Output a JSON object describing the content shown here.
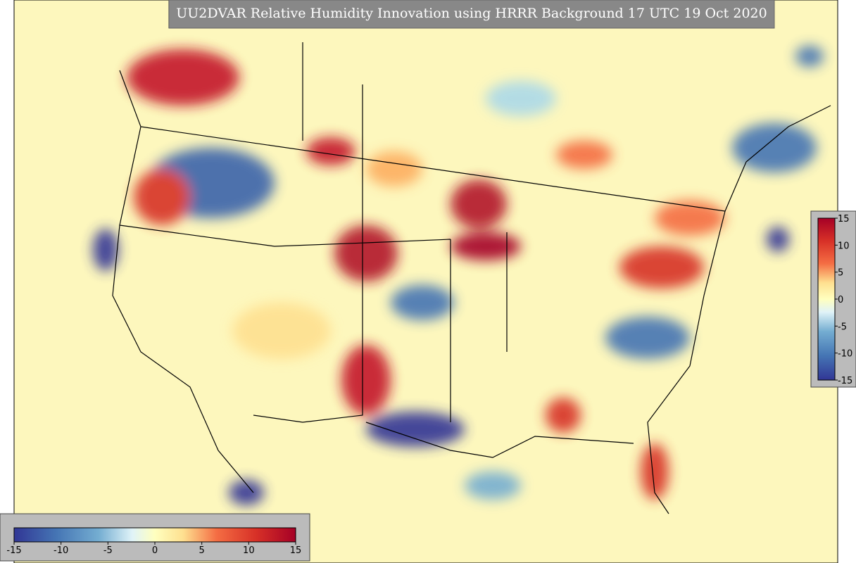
{
  "title": "UU2DVAR Relative Humidity Innovation using HRRR Background 17 UTC 19 Oct 2020",
  "colorbars": [
    {
      "orientation": "horizontal",
      "lim": [
        -15,
        15
      ],
      "ticks": [
        -15,
        -10,
        -5,
        0,
        5,
        10,
        15
      ]
    },
    {
      "orientation": "vertical",
      "lim": [
        -15,
        15
      ],
      "ticks": [
        -15,
        -10,
        -5,
        0,
        5,
        10,
        15
      ]
    }
  ]
}
